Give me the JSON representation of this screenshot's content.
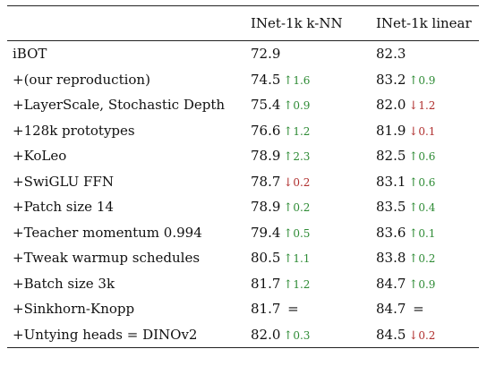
{
  "columns": [
    "",
    "INet-1k k-NN",
    "INet-1k linear"
  ],
  "rows": [
    {
      "label": "iBOT",
      "knn": "72.9",
      "knn_dir": "",
      "knn_delta": "",
      "lin": "82.3",
      "lin_dir": "",
      "lin_delta": ""
    },
    {
      "label": "+(our reproduction)",
      "knn": "74.5",
      "knn_dir": "up",
      "knn_delta": "1.6",
      "lin": "83.2",
      "lin_dir": "up",
      "lin_delta": "0.9"
    },
    {
      "label": "+LayerScale, Stochastic Depth",
      "knn": "75.4",
      "knn_dir": "up",
      "knn_delta": "0.9",
      "lin": "82.0",
      "lin_dir": "down",
      "lin_delta": "1.2"
    },
    {
      "label": "+128k prototypes",
      "knn": "76.6",
      "knn_dir": "up",
      "knn_delta": "1.2",
      "lin": "81.9",
      "lin_dir": "down",
      "lin_delta": "0.1"
    },
    {
      "label": "+KoLeo",
      "knn": "78.9",
      "knn_dir": "up",
      "knn_delta": "2.3",
      "lin": "82.5",
      "lin_dir": "up",
      "lin_delta": "0.6"
    },
    {
      "label": "+SwiGLU FFN",
      "knn": "78.7",
      "knn_dir": "down",
      "knn_delta": "0.2",
      "lin": "83.1",
      "lin_dir": "up",
      "lin_delta": "0.6"
    },
    {
      "label": "+Patch size 14",
      "knn": "78.9",
      "knn_dir": "up",
      "knn_delta": "0.2",
      "lin": "83.5",
      "lin_dir": "up",
      "lin_delta": "0.4"
    },
    {
      "label": "+Teacher momentum 0.994",
      "knn": "79.4",
      "knn_dir": "up",
      "knn_delta": "0.5",
      "lin": "83.6",
      "lin_dir": "up",
      "lin_delta": "0.1"
    },
    {
      "label": "+Tweak warmup schedules",
      "knn": "80.5",
      "knn_dir": "up",
      "knn_delta": "1.1",
      "lin": "83.8",
      "lin_dir": "up",
      "lin_delta": "0.2"
    },
    {
      "label": "+Batch size 3k",
      "knn": "81.7",
      "knn_dir": "up",
      "knn_delta": "1.2",
      "lin": "84.7",
      "lin_dir": "up",
      "lin_delta": "0.9"
    },
    {
      "label": "+Sinkhorn-Knopp",
      "knn": "81.7",
      "knn_dir": "eq",
      "knn_delta": "=",
      "lin": "84.7",
      "lin_dir": "eq",
      "lin_delta": "="
    },
    {
      "label": "+Untying heads = DINOv2",
      "knn": "82.0",
      "knn_dir": "up",
      "knn_delta": "0.3",
      "lin": "84.5",
      "lin_dir": "down",
      "lin_delta": "0.2"
    }
  ],
  "colors": {
    "up": "#2e8b35",
    "down": "#b0302f"
  },
  "icons": {
    "up": "up-arrow-icon",
    "down": "down-arrow-icon"
  }
}
